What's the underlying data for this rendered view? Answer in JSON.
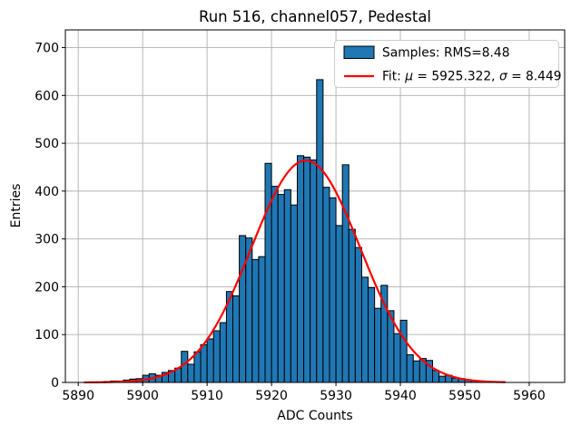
{
  "chart_data": {
    "type": "bar",
    "subtype": "histogram-with-gaussian-fit",
    "title": "Run 516, channel057, Pedestal",
    "xlabel": "ADC Counts",
    "ylabel": "Entries",
    "xlim": [
      5888,
      5965.5
    ],
    "ylim": [
      0,
      737
    ],
    "x_ticks": [
      5890,
      5900,
      5910,
      5920,
      5930,
      5940,
      5950,
      5960
    ],
    "y_ticks": [
      0,
      100,
      200,
      300,
      400,
      500,
      600,
      700
    ],
    "grid": true,
    "grid_color": "#b0b0b0",
    "bar_color": "#1f77b4",
    "bar_edge_color": "#000000",
    "fit_color": "#ff0000",
    "bin_width": 1,
    "bin_start": 5892,
    "counts": [
      1,
      1,
      2,
      3,
      3,
      5,
      7,
      8,
      15,
      18,
      15,
      21,
      25,
      30,
      65,
      38,
      64,
      79,
      91,
      108,
      125,
      190,
      181,
      307,
      302,
      257,
      263,
      458,
      410,
      393,
      403,
      371,
      474,
      471,
      465,
      633,
      408,
      386,
      328,
      455,
      320,
      282,
      220,
      198,
      155,
      203,
      150,
      102,
      130,
      58,
      45,
      50,
      46,
      25,
      13,
      15,
      9,
      8,
      5,
      3,
      2,
      1,
      1,
      1
    ],
    "fit": {
      "mu": 5925.322,
      "sigma": 8.449,
      "amplitude": 464,
      "x_range": [
        5891.0,
        5956.3
      ]
    },
    "legend": {
      "position": "upper right",
      "samples_label": "Samples: RMS=8.48",
      "fit_label_prefix": "Fit: ",
      "fit_mu_symbol": "μ",
      "fit_mu_value": " = 5925.322, ",
      "fit_sigma_symbol": "σ",
      "fit_sigma_value": " = 8.449"
    }
  }
}
